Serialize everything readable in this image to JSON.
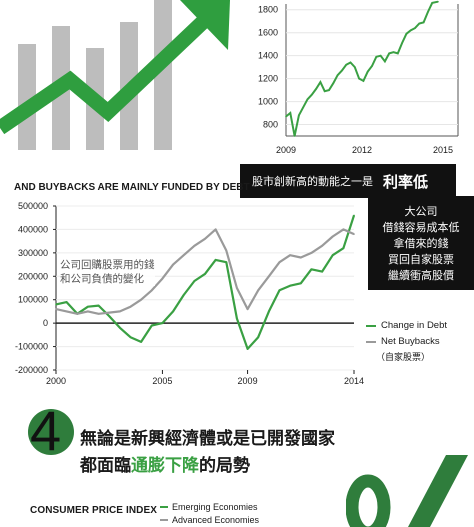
{
  "colors": {
    "green": "#3aa043",
    "dark_green": "#2f7d3c",
    "gray": "#9a9a9a",
    "light_gray": "#bdbdbd",
    "black": "#111111"
  },
  "decor": {
    "arrow_icon": "upward-trend-arrow-icon",
    "bars_icon": "gray-bars-icon"
  },
  "top_chart": {
    "y_ticks": [
      "1800",
      "1600",
      "1400",
      "1200",
      "1000",
      "800"
    ],
    "x_ticks": [
      "2009",
      "2012",
      "2015"
    ]
  },
  "banner": {
    "small": "股市創新高的動能之一是",
    "big": "利率低"
  },
  "main_chart": {
    "title": "AND BUYBACKS ARE MAINLY FUNDED BY DEBT",
    "y_ticks": [
      "500000",
      "400000",
      "300000",
      "200000",
      "100000",
      "0",
      "-100000",
      "-200000"
    ],
    "x_ticks": [
      "2000",
      "2005",
      "2009",
      "2014"
    ],
    "annotation_line1": "公司回購股票用的錢",
    "annotation_line2": "和公司負債的變化",
    "legend_debt": "Change in Debt",
    "legend_buybacks": "Net Buybacks",
    "legend_buybacks_sub": "（自家股票）"
  },
  "side_note": [
    "大公司",
    "借錢容易成本低",
    "拿借來的錢",
    "買回自家股票",
    "繼續衝高股價"
  ],
  "section4": {
    "number": "4",
    "line1": "無論是新興經濟體或是已開發國家",
    "line2_prefix": "都面臨",
    "line2_highlight": "通膨下降",
    "line2_suffix": "的局勢"
  },
  "cpi": {
    "title": "CONSUMER PRICE INDEX",
    "legend_emerging": "Emerging Economies",
    "legend_advanced": "Advanced Economies"
  },
  "chart_data": [
    {
      "type": "line",
      "title": "",
      "xlabel": "",
      "ylabel": "",
      "xlim": [
        2009,
        2015
      ],
      "ylim": [
        700,
        1850
      ],
      "series": [
        {
          "x": [
            2009.0,
            2009.15,
            2009.3,
            2009.45,
            2009.6,
            2009.75,
            2009.9,
            2010.05,
            2010.2,
            2010.35,
            2010.5,
            2010.65,
            2010.8,
            2010.95,
            2011.1,
            2011.25,
            2011.4,
            2011.55,
            2011.7,
            2011.85,
            2012.0,
            2012.15,
            2012.3,
            2012.45,
            2012.6,
            2012.75,
            2012.9,
            2013.05,
            2013.2,
            2013.35,
            2013.5,
            2013.65,
            2013.8,
            2013.95,
            2014.1,
            2014.3
          ],
          "values": [
            870,
            900,
            700,
            880,
            950,
            1020,
            1060,
            1110,
            1170,
            1090,
            1100,
            1160,
            1230,
            1270,
            1320,
            1340,
            1300,
            1200,
            1180,
            1260,
            1310,
            1390,
            1400,
            1350,
            1420,
            1430,
            1420,
            1510,
            1590,
            1620,
            1640,
            1680,
            1690,
            1780,
            1860,
            1870
          ]
        }
      ]
    },
    {
      "type": "line",
      "title": "AND BUYBACKS ARE MAINLY FUNDED BY DEBT",
      "xlabel": "",
      "ylabel": "",
      "xlim": [
        2000,
        2014
      ],
      "ylim": [
        -200000,
        500000
      ],
      "series": [
        {
          "name": "Change in Debt",
          "x": [
            2000,
            2000.5,
            2001,
            2001.5,
            2002,
            2002.5,
            2003,
            2003.5,
            2004,
            2004.5,
            2005,
            2005.5,
            2006,
            2006.5,
            2007,
            2007.5,
            2008,
            2008.5,
            2009,
            2009.5,
            2010,
            2010.5,
            2011,
            2011.5,
            2012,
            2012.5,
            2013,
            2013.5,
            2014
          ],
          "values": [
            80000,
            90000,
            40000,
            70000,
            75000,
            30000,
            -20000,
            -60000,
            -80000,
            -10000,
            0,
            50000,
            120000,
            180000,
            210000,
            270000,
            260000,
            20000,
            -110000,
            -60000,
            50000,
            140000,
            160000,
            170000,
            230000,
            220000,
            290000,
            320000,
            460000
          ]
        },
        {
          "name": "Net Buybacks",
          "x": [
            2000,
            2000.5,
            2001,
            2001.5,
            2002,
            2002.5,
            2003,
            2003.5,
            2004,
            2004.5,
            2005,
            2005.5,
            2006,
            2006.5,
            2007,
            2007.5,
            2008,
            2008.5,
            2009,
            2009.5,
            2010,
            2010.5,
            2011,
            2011.5,
            2012,
            2012.5,
            2013,
            2013.5,
            2014
          ],
          "values": [
            60000,
            50000,
            40000,
            50000,
            40000,
            45000,
            50000,
            70000,
            100000,
            140000,
            190000,
            250000,
            290000,
            330000,
            360000,
            400000,
            310000,
            150000,
            60000,
            140000,
            200000,
            260000,
            290000,
            280000,
            300000,
            330000,
            370000,
            400000,
            380000
          ]
        }
      ]
    }
  ]
}
